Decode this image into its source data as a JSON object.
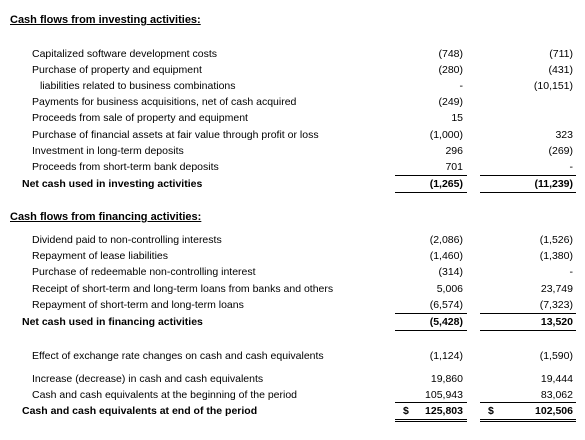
{
  "sections": [
    {
      "title": "Cash flows from investing activities:",
      "rows": [
        {
          "label": "Capitalized software development costs",
          "values": [
            "(748)",
            "(711)"
          ]
        },
        {
          "label": "Purchase of property and equipment",
          "values": [
            "(280)",
            "(431)"
          ]
        },
        {
          "label": "liabilities related to business combinations",
          "values": [
            "-",
            "(10,151)"
          ]
        },
        {
          "label": "Payments for business acquisitions, net of cash acquired",
          "values": [
            "(249)",
            null
          ]
        },
        {
          "label": "Proceeds from sale of property and equipment",
          "values": [
            "15",
            null
          ]
        },
        {
          "label": "Purchase of financial assets at fair value through profit or loss",
          "values": [
            "(1,000)",
            "323"
          ]
        },
        {
          "label": "Investment in long-term deposits",
          "values": [
            "296",
            "(269)"
          ]
        },
        {
          "label": "Proceeds from short-term bank deposits",
          "values": [
            "701",
            "-"
          ]
        },
        {
          "label": "Net cash used in investing activities",
          "values": [
            "(1,265)",
            "(11,239)"
          ],
          "total": true
        }
      ]
    },
    {
      "title": "Cash flows from financing activities:",
      "rows": [
        {
          "label": "Dividend paid to non-controlling interests",
          "values": [
            "(2,086)",
            "(1,526)"
          ]
        },
        {
          "label": "Repayment of lease liabilities",
          "values": [
            "(1,460)",
            "(1,380)"
          ]
        },
        {
          "label": "Purchase of redeemable non-controlling interest",
          "values": [
            "(314)",
            "-"
          ]
        },
        {
          "label": "Receipt of short-term and long-term loans from banks and others",
          "values": [
            "5,006",
            "23,749"
          ]
        },
        {
          "label": "Repayment of short-term and long-term loans",
          "values": [
            "(6,574)",
            "(7,323)"
          ]
        },
        {
          "label": "Net cash used in financing activities",
          "values": [
            "(5,428)",
            "13,520"
          ],
          "total": true
        }
      ]
    },
    {
      "title": null,
      "rows": [
        {
          "label": "Effect of exchange rate changes on cash and cash equivalents",
          "values": [
            "(1,124)",
            "(1,590)"
          ]
        },
        {
          "label": "Increase (decrease) in cash and cash equivalents",
          "values": [
            "19,860",
            "19,444"
          ]
        },
        {
          "label": "Cash and cash equivalents at the beginning of the period",
          "values": [
            "105,943",
            "83,062"
          ]
        },
        {
          "label": "Cash and cash equivalents at end of the period",
          "values": [
            "125,803",
            "102,506"
          ],
          "currency": [
            "$",
            "$"
          ],
          "total": true
        }
      ]
    }
  ]
}
